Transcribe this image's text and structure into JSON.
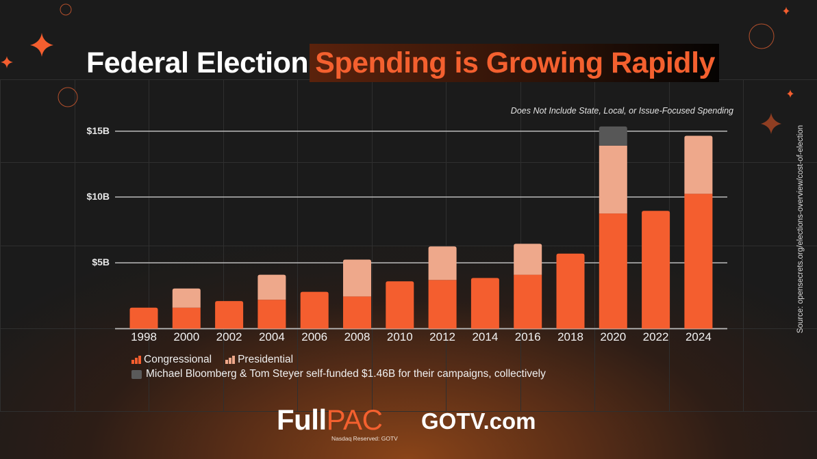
{
  "colors": {
    "congressional": "#f45e2f",
    "presidential": "#eea88b",
    "self_funded": "#575757",
    "accent": "#f4602f",
    "gridline": "#bdbdbd"
  },
  "title": {
    "part1": "Federal Election",
    "part2": "Spending is Growing Rapidly"
  },
  "note": "Does Not Include State, Local, or Issue-Focused Spending",
  "source": "Source: opensecrets.org/elections-overview/cost-of-election",
  "legend": {
    "congressional": "Congressional",
    "presidential": "Presidential",
    "self_funded": "Michael Bloomberg & Tom Steyer self-funded $1.46B for their campaigns, collectively"
  },
  "footer": {
    "brand_part1": "Full",
    "brand_part2": "PAC",
    "ticker": "Nasdaq Reserved: GOTV",
    "site": "GOTV.com"
  },
  "chart_data": {
    "type": "bar",
    "stacked": true,
    "title": "Federal Election Spending is Growing Rapidly",
    "xlabel": "",
    "ylabel": "",
    "ylim": [
      0,
      15.5
    ],
    "yticks": [
      {
        "value": 0,
        "label": ""
      },
      {
        "value": 5,
        "label": "$5B"
      },
      {
        "value": 10,
        "label": "$10B"
      },
      {
        "value": 15,
        "label": "$15B"
      }
    ],
    "unit": "billion USD",
    "grid": true,
    "legend_position": "bottom-left",
    "categories": [
      "1998",
      "2000",
      "2002",
      "2004",
      "2006",
      "2008",
      "2010",
      "2012",
      "2014",
      "2016",
      "2018",
      "2020",
      "2022",
      "2024"
    ],
    "series": [
      {
        "name": "Congressional",
        "key": "congressional",
        "values": [
          1.6,
          1.6,
          2.1,
          2.2,
          2.8,
          2.45,
          3.6,
          3.7,
          3.85,
          4.1,
          5.7,
          8.75,
          8.95,
          10.25
        ]
      },
      {
        "name": "Presidential",
        "key": "presidential",
        "values": [
          0,
          1.45,
          0,
          1.9,
          0,
          2.8,
          0,
          2.55,
          0,
          2.35,
          0,
          5.15,
          0,
          4.4
        ]
      },
      {
        "name": "Bloomberg & Steyer self-funded",
        "key": "self_funded",
        "values": [
          0,
          0,
          0,
          0,
          0,
          0,
          0,
          0,
          0,
          0,
          0,
          1.46,
          0,
          0
        ]
      }
    ]
  }
}
